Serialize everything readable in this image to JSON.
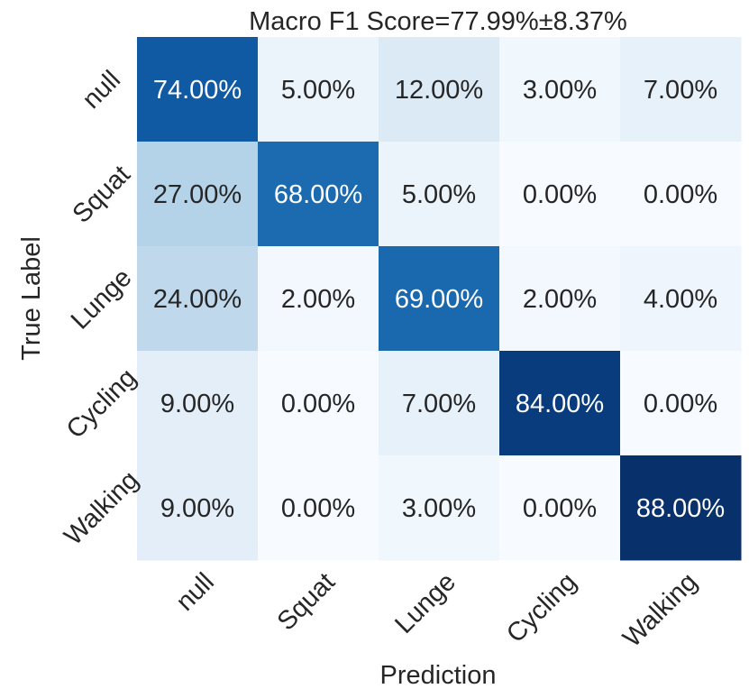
{
  "chart_data": {
    "type": "heatmap",
    "title": "Macro F1 Score=77.99%±8.37%",
    "xlabel": "Prediction",
    "ylabel": "True Label",
    "x_categories": [
      "null",
      "Squat",
      "Lunge",
      "Cycling",
      "Walking"
    ],
    "y_categories": [
      "null",
      "Squat",
      "Lunge",
      "Cycling",
      "Walking"
    ],
    "values": [
      [
        74,
        5,
        12,
        3,
        7
      ],
      [
        27,
        68,
        5,
        0,
        0
      ],
      [
        24,
        2,
        69,
        2,
        4
      ],
      [
        9,
        0,
        7,
        84,
        0
      ],
      [
        9,
        0,
        3,
        0,
        88
      ]
    ],
    "cell_labels": [
      [
        "74.00%",
        "5.00%",
        "12.00%",
        "3.00%",
        "7.00%"
      ],
      [
        "27.00%",
        "68.00%",
        "5.00%",
        "0.00%",
        "0.00%"
      ],
      [
        "24.00%",
        "2.00%",
        "69.00%",
        "2.00%",
        "4.00%"
      ],
      [
        "9.00%",
        "0.00%",
        "7.00%",
        "84.00%",
        "0.00%"
      ],
      [
        "9.00%",
        "0.00%",
        "3.00%",
        "0.00%",
        "88.00%"
      ]
    ],
    "colormap": "Blues",
    "value_range": [
      0,
      88
    ],
    "colorbar": false,
    "grid": false
  }
}
